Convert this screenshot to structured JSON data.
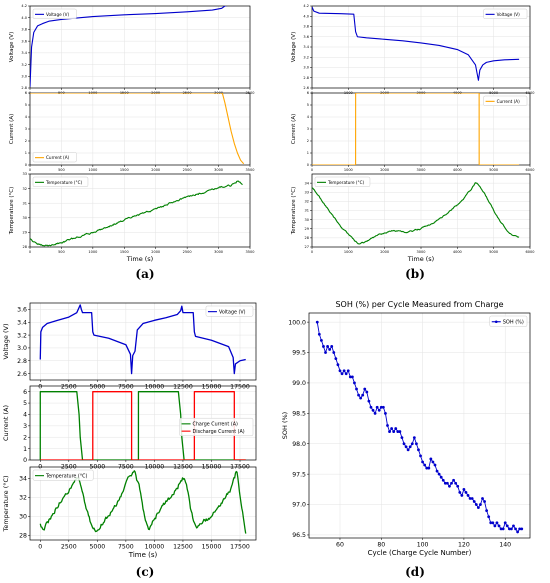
{
  "captions": [
    "(a)",
    "(b)",
    "(c)",
    "(d)"
  ],
  "chart_data": [
    {
      "type": "line",
      "panel": "a",
      "row": "voltage",
      "xlabel": "",
      "ylabel": "Voltage (V)",
      "xlim": [
        0,
        3500
      ],
      "ylim": [
        2.8,
        4.2
      ],
      "xticks": [
        0,
        500,
        1000,
        1500,
        2000,
        2500,
        3000,
        3500
      ],
      "yticks": [
        2.8,
        3.0,
        3.2,
        3.4,
        3.6,
        3.8,
        4.0,
        4.2
      ],
      "series": [
        {
          "name": "Voltage (V)",
          "color": "#0000cc",
          "x": [
            0,
            25,
            60,
            120,
            200,
            300,
            500,
            800,
            1000,
            1500,
            2000,
            2500,
            2900,
            3050,
            3100,
            3150,
            3400
          ],
          "y": [
            2.82,
            3.5,
            3.75,
            3.86,
            3.9,
            3.94,
            3.97,
            4.0,
            4.02,
            4.05,
            4.07,
            4.1,
            4.13,
            4.16,
            4.2,
            4.21,
            4.21
          ]
        }
      ],
      "legend": "top-left"
    },
    {
      "type": "line",
      "panel": "a",
      "row": "current",
      "xlabel": "",
      "ylabel": "Current (A)",
      "xlim": [
        0,
        3500
      ],
      "ylim": [
        0,
        6
      ],
      "xticks": [
        0,
        500,
        1000,
        1500,
        2000,
        2500,
        3000,
        3500
      ],
      "yticks": [
        0,
        1,
        2,
        3,
        4,
        5,
        6
      ],
      "series": [
        {
          "name": "Current (A)",
          "color": "#ffa500",
          "x": [
            0,
            3060,
            3100,
            3150,
            3200,
            3250,
            3300,
            3350,
            3400
          ],
          "y": [
            6,
            6,
            5.2,
            4.0,
            2.8,
            1.8,
            1.0,
            0.4,
            0.1
          ]
        }
      ],
      "legend": "bottom-left"
    },
    {
      "type": "line",
      "panel": "a",
      "row": "temperature",
      "xlabel": "Time (s)",
      "ylabel": "Temperature (°C)",
      "xlim": [
        0,
        3500
      ],
      "ylim": [
        28,
        33
      ],
      "xticks": [
        0,
        500,
        1000,
        1500,
        2000,
        2500,
        3000,
        3500
      ],
      "yticks": [
        28,
        29,
        30,
        31,
        32,
        33
      ],
      "series": [
        {
          "name": "Temperature (°C)",
          "color": "#008000",
          "noise": 0.06,
          "x": [
            0,
            100,
            200,
            300,
            500,
            700,
            1000,
            1300,
            1600,
            2000,
            2400,
            2800,
            3000,
            3200,
            3300,
            3380
          ],
          "y": [
            28.6,
            28.2,
            28.1,
            28.1,
            28.3,
            28.6,
            29.0,
            29.5,
            30.0,
            30.6,
            31.3,
            31.8,
            32.1,
            32.2,
            32.5,
            32.3
          ]
        }
      ],
      "legend": "top-left"
    },
    {
      "type": "line",
      "panel": "b",
      "row": "voltage",
      "xlabel": "",
      "ylabel": "Voltage (V)",
      "xlim": [
        0,
        6000
      ],
      "ylim": [
        2.6,
        4.2
      ],
      "xticks": [
        0,
        1000,
        2000,
        3000,
        4000,
        5000,
        6000
      ],
      "yticks": [
        2.6,
        2.8,
        3.0,
        3.2,
        3.4,
        3.6,
        3.8,
        4.0,
        4.2
      ],
      "series": [
        {
          "name": "Voltage (V)",
          "color": "#0000cc",
          "x": [
            0,
            50,
            200,
            800,
            1150,
            1200,
            1250,
            1500,
            2000,
            2500,
            3000,
            3500,
            4000,
            4300,
            4500,
            4580,
            4620,
            4700,
            4800,
            5000,
            5300,
            5700
          ],
          "y": [
            4.18,
            4.1,
            4.06,
            4.05,
            4.04,
            3.7,
            3.6,
            3.58,
            3.55,
            3.52,
            3.48,
            3.43,
            3.35,
            3.25,
            3.05,
            2.75,
            2.95,
            3.05,
            3.1,
            3.13,
            3.15,
            3.16
          ]
        }
      ],
      "legend": "top-right"
    },
    {
      "type": "line",
      "panel": "b",
      "row": "current",
      "xlabel": "",
      "ylabel": "Current (A)",
      "xlim": [
        0,
        6000
      ],
      "ylim": [
        0,
        6
      ],
      "xticks": [
        0,
        1000,
        2000,
        3000,
        4000,
        5000,
        6000
      ],
      "yticks": [
        0,
        1,
        2,
        3,
        4,
        5,
        6
      ],
      "series": [
        {
          "name": "Current (A)",
          "color": "#ffa500",
          "x": [
            0,
            1200,
            1201,
            4600,
            4601,
            5700
          ],
          "y": [
            0,
            0,
            6,
            6,
            0,
            0
          ]
        }
      ],
      "legend": "top-right"
    },
    {
      "type": "line",
      "panel": "b",
      "row": "temperature",
      "xlabel": "Time (s)",
      "ylabel": "Temperature (°C)",
      "xlim": [
        0,
        6000
      ],
      "ylim": [
        27,
        35
      ],
      "xticks": [
        0,
        1000,
        2000,
        3000,
        4000,
        5000,
        6000
      ],
      "yticks": [
        27,
        28,
        29,
        30,
        31,
        32,
        33,
        34
      ],
      "series": [
        {
          "name": "Temperature (°C)",
          "color": "#008000",
          "noise": 0.08,
          "x": [
            0,
            200,
            500,
            800,
            1100,
            1300,
            1500,
            1800,
            2200,
            2600,
            3000,
            3400,
            3800,
            4200,
            4500,
            4600,
            4800,
            5100,
            5400,
            5700
          ],
          "y": [
            33.5,
            32.5,
            30.8,
            29.2,
            28.0,
            27.3,
            27.6,
            28.3,
            28.8,
            28.6,
            29.0,
            29.8,
            30.9,
            32.4,
            34.0,
            33.8,
            32.5,
            30.3,
            28.6,
            28.0
          ]
        }
      ],
      "legend": "top-left"
    },
    {
      "type": "line",
      "panel": "c",
      "row": "voltage",
      "xlabel": "",
      "ylabel": "Voltage (V)",
      "xlim": [
        -900,
        18900
      ],
      "ylim": [
        2.5,
        3.7
      ],
      "xticks": [
        0,
        2500,
        5000,
        7500,
        10000,
        12500,
        15000,
        17500
      ],
      "yticks": [
        2.6,
        2.8,
        3.0,
        3.2,
        3.4,
        3.6
      ],
      "series": [
        {
          "name": "Voltage (V)",
          "color": "#0000cc",
          "x": [
            0,
            50,
            200,
            600,
            1500,
            2500,
            3200,
            3500,
            3600,
            3700,
            4500,
            4600,
            4700,
            6000,
            7500,
            7900,
            8000,
            8100,
            8300,
            8500,
            9000,
            10000,
            11000,
            12000,
            12300,
            12400,
            12500,
            13400,
            13500,
            13600,
            15000,
            16500,
            16900,
            17000,
            17100,
            17500,
            18000
          ],
          "y": [
            2.82,
            3.25,
            3.32,
            3.38,
            3.43,
            3.48,
            3.55,
            3.67,
            3.6,
            3.55,
            3.55,
            3.25,
            3.2,
            3.15,
            3.05,
            2.9,
            2.6,
            2.88,
            2.95,
            3.28,
            3.38,
            3.43,
            3.47,
            3.52,
            3.58,
            3.65,
            3.55,
            3.55,
            3.25,
            3.18,
            3.12,
            3.02,
            2.85,
            2.6,
            2.75,
            2.8,
            2.82
          ]
        }
      ],
      "legend": "top-right"
    },
    {
      "type": "line",
      "panel": "c",
      "row": "current",
      "xlabel": "",
      "ylabel": "Current (A)",
      "xlim": [
        -900,
        18900
      ],
      "ylim": [
        0,
        6.5
      ],
      "xticks": [
        0,
        2500,
        5000,
        7500,
        10000,
        12500,
        15000,
        17500
      ],
      "yticks": [
        0,
        1,
        2,
        3,
        4,
        5,
        6
      ],
      "series": [
        {
          "name": "Charge Current (A)",
          "color": "#008000",
          "x": [
            0,
            1,
            3200,
            3400,
            3500,
            3700,
            8600,
            8601,
            12100,
            12300,
            12400,
            12600,
            18000
          ],
          "y": [
            0,
            6,
            6,
            4,
            2,
            0,
            0,
            6,
            6,
            4,
            2,
            0,
            0
          ]
        },
        {
          "name": "Discharge Current (A)",
          "color": "#ff0000",
          "x": [
            0,
            4600,
            4601,
            8000,
            8001,
            13500,
            13501,
            17000,
            17001,
            18000
          ],
          "y": [
            0,
            0,
            6,
            6,
            0,
            0,
            6,
            6,
            0,
            0
          ]
        }
      ],
      "legend": "center-right"
    },
    {
      "type": "line",
      "panel": "c",
      "row": "temperature",
      "xlabel": "Time (s)",
      "ylabel": "Temperature (°C)",
      "xlim": [
        -900,
        18900
      ],
      "ylim": [
        27.5,
        35.2
      ],
      "xticks": [
        0,
        2500,
        5000,
        7500,
        10000,
        12500,
        15000,
        17500
      ],
      "yticks": [
        28,
        30,
        32,
        34
      ],
      "series": [
        {
          "name": "Temperature (°C)",
          "color": "#008000",
          "noise": 0.25,
          "x": [
            0,
            200,
            500,
            1000,
            1500,
            2000,
            2500,
            3000,
            3300,
            3600,
            4000,
            4500,
            4800,
            5200,
            6000,
            7000,
            7800,
            8200,
            8700,
            9200,
            9500,
            10000,
            11000,
            12000,
            12500,
            12800,
            13200,
            13600,
            14000,
            15000,
            16000,
            16800,
            17200,
            17600,
            18000
          ],
          "y": [
            29.2,
            28.5,
            29.0,
            30.0,
            31.0,
            32.0,
            32.8,
            33.5,
            34.0,
            33.0,
            31.0,
            29.0,
            28.5,
            29.0,
            30.0,
            32.0,
            34.0,
            34.8,
            33.0,
            29.5,
            28.8,
            29.8,
            31.5,
            33.0,
            34.2,
            33.6,
            30.5,
            28.8,
            29.2,
            30.0,
            31.5,
            33.0,
            34.8,
            31.0,
            28.2
          ]
        }
      ],
      "legend": "top-left"
    },
    {
      "type": "line",
      "panel": "d",
      "row": "soh",
      "title": "SOH (%) per Cycle Measured from Charge",
      "xlabel": "Cycle (Charge Cycle Number)",
      "ylabel": "SOH (%)",
      "xlim": [
        45,
        152
      ],
      "ylim": [
        96.45,
        100.15
      ],
      "xticks": [
        60,
        80,
        100,
        120,
        140
      ],
      "yticks": [
        96.5,
        97.0,
        97.5,
        98.0,
        98.5,
        99.0,
        99.5,
        100.0
      ],
      "markers": true,
      "series": [
        {
          "name": "SOH (%)",
          "color": "#0000cc",
          "x": [
            49,
            50,
            51,
            52,
            53,
            54,
            55,
            56,
            57,
            58,
            59,
            60,
            61,
            62,
            63,
            64,
            65,
            66,
            67,
            68,
            69,
            70,
            71,
            72,
            73,
            74,
            75,
            76,
            77,
            78,
            79,
            80,
            81,
            82,
            83,
            84,
            85,
            86,
            87,
            88,
            89,
            90,
            91,
            92,
            93,
            94,
            95,
            96,
            97,
            98,
            99,
            100,
            101,
            102,
            103,
            104,
            105,
            106,
            107,
            108,
            109,
            110,
            111,
            112,
            113,
            114,
            115,
            116,
            117,
            118,
            119,
            120,
            121,
            122,
            123,
            124,
            125,
            126,
            127,
            128,
            129,
            130,
            131,
            132,
            133,
            134,
            135,
            136,
            137,
            138,
            139,
            140,
            141,
            142,
            143,
            144,
            145,
            146,
            147,
            148
          ],
          "y": [
            100.0,
            99.8,
            99.7,
            99.6,
            99.5,
            99.6,
            99.55,
            99.6,
            99.5,
            99.4,
            99.3,
            99.2,
            99.15,
            99.2,
            99.15,
            99.2,
            99.1,
            99.1,
            99.0,
            98.9,
            98.8,
            98.75,
            98.8,
            98.9,
            98.85,
            98.7,
            98.6,
            98.55,
            98.5,
            98.6,
            98.55,
            98.6,
            98.6,
            98.5,
            98.3,
            98.2,
            98.25,
            98.2,
            98.25,
            98.2,
            98.2,
            98.1,
            98.0,
            97.95,
            97.9,
            97.95,
            98.0,
            98.1,
            98.0,
            97.9,
            97.8,
            97.7,
            97.65,
            97.6,
            97.6,
            97.75,
            97.7,
            97.65,
            97.55,
            97.5,
            97.45,
            97.4,
            97.35,
            97.35,
            97.3,
            97.35,
            97.4,
            97.35,
            97.3,
            97.2,
            97.15,
            97.25,
            97.2,
            97.15,
            97.1,
            97.1,
            97.05,
            97.0,
            96.95,
            97.0,
            97.1,
            97.05,
            96.9,
            96.8,
            96.7,
            96.7,
            96.65,
            96.7,
            96.65,
            96.6,
            96.6,
            96.7,
            96.65,
            96.6,
            96.6,
            96.65,
            96.6,
            96.55,
            96.6,
            96.6
          ]
        }
      ],
      "legend": "top-right"
    }
  ]
}
